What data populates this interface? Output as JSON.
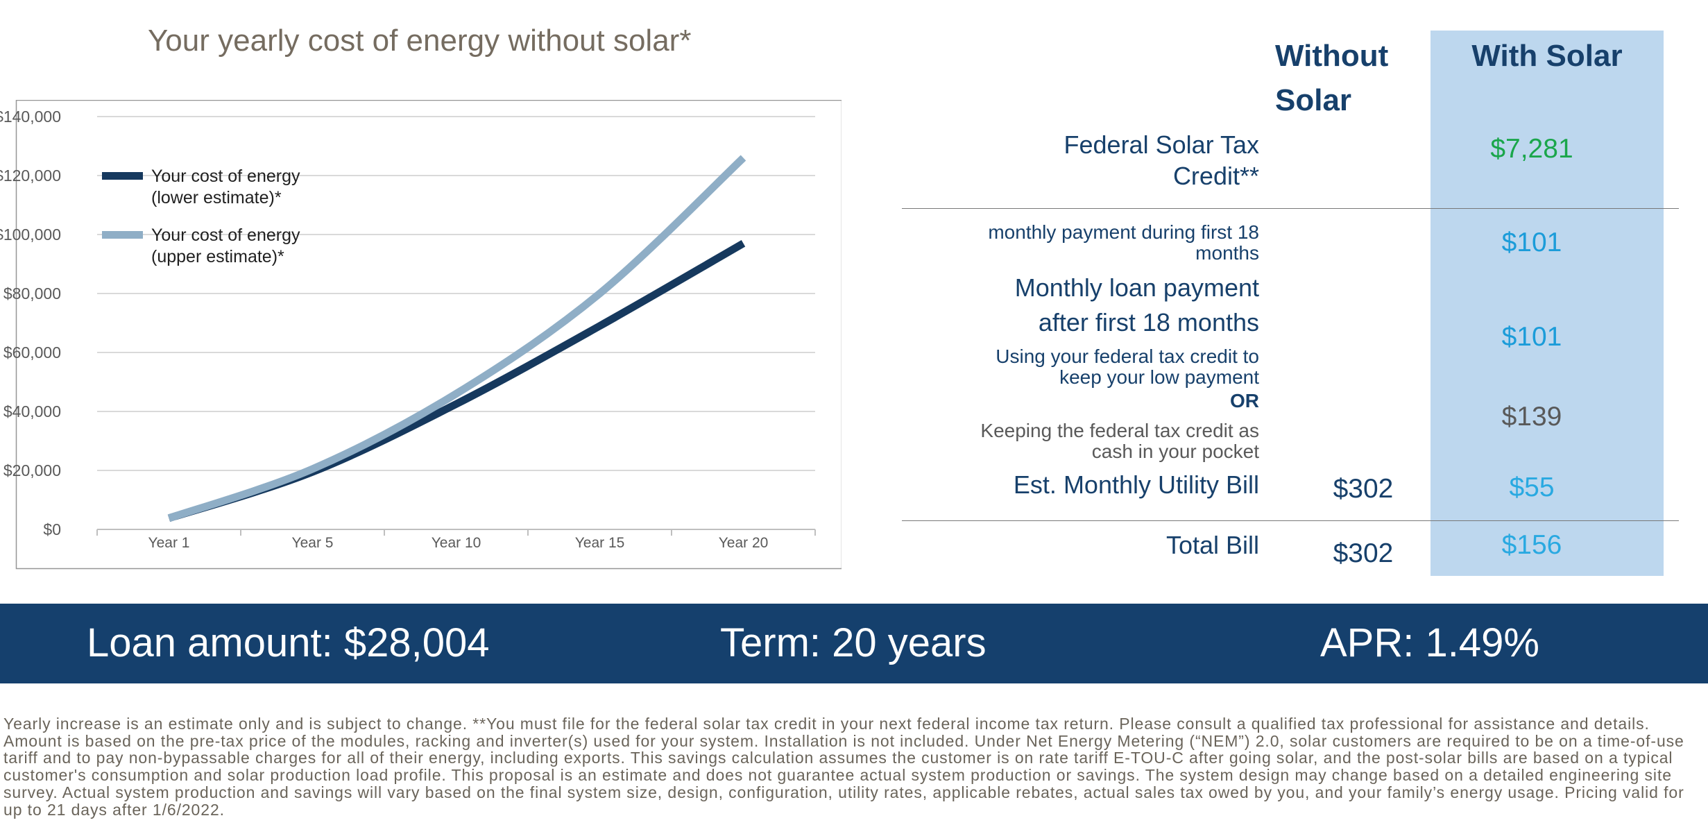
{
  "title": "Your yearly cost of energy without solar*",
  "colors": {
    "navy": "#17406B",
    "banner_bg": "#15406D",
    "with_col_bg": "#BDD7EE",
    "green": "#1AA64B",
    "blue_101": "#1B9CD9",
    "cyan": "#29A9E1",
    "gray_value": "#595959",
    "title_text": "#756C60",
    "fineprint_text": "#6A645A",
    "axis_label": "#595959",
    "gridline": "#D9D9D9",
    "axis_line": "#BFBFBF",
    "chart_border": "#969696",
    "legend_text": "#1F1F1F",
    "line_lower": "#16395E",
    "line_upper": "#8FAEC6"
  },
  "chart_data": {
    "type": "line",
    "title": "Your yearly cost of energy without solar*",
    "x_categories": [
      "Year 1",
      "Year 5",
      "Year 10",
      "Year 15",
      "Year 20"
    ],
    "y_ticks": [
      "$0",
      "$20,000",
      "$40,000",
      "$60,000",
      "$80,000",
      "$100,000",
      "$120,000",
      "$140,000"
    ],
    "ylim": [
      0,
      140000
    ],
    "grid": true,
    "legend_position": "inside-top-left",
    "series": [
      {
        "name": "Your cost of energy (lower estimate)*",
        "values": [
          3800,
          19500,
          42500,
          69000,
          97000
        ]
      },
      {
        "name": "Your cost of energy (upper estimate)*",
        "values": [
          3800,
          20500,
          46000,
          80000,
          126000
        ]
      }
    ]
  },
  "comparison": {
    "header_without": "Without Solar",
    "header_with": "With Solar",
    "rows": [
      {
        "label": "Federal Solar Tax Credit**",
        "with": "$7,281"
      },
      {
        "label": "monthly payment during first 18 months",
        "with": "$101"
      },
      {
        "label": "Monthly loan payment after first 18 months",
        "with": "$101"
      },
      {
        "label": "Using your federal tax credit to keep your low payment"
      },
      {
        "label": "OR"
      },
      {
        "label": "Keeping the federal tax credit as cash in your pocket",
        "with": "$139"
      },
      {
        "label": "Est. Monthly Utility Bill",
        "without": "$302",
        "with": "$55"
      },
      {
        "label": "Total Bill",
        "without": "$302",
        "with": "$156"
      }
    ]
  },
  "banner": {
    "loan": "Loan amount: $28,004",
    "term": "Term: 20 years",
    "apr": "APR: 1.49%"
  },
  "disclaimer": "Yearly increase is an estimate only and is subject to change. **You must file for the federal solar tax credit in your next federal income tax return. Please consult a qualified tax professional for assistance and details. Amount is based on the pre-tax price of the modules, racking and inverter(s) used for your system. Installation is not included. Under Net Energy Metering (“NEM”) 2.0, solar customers are required to be on a time-of-use tariff and to pay non-bypassable charges for all of their energy, including exports. This savings calculation assumes the customer is on rate tariff E-TOU-C after going solar, and the post-solar bills are based on a typical customer's consumption and solar production load profile.  This proposal is an estimate and does not guarantee actual system production or savings. The system design may change based on a detailed engineering site survey. Actual system production and savings will vary based on the final system size, design, configuration, utility rates, applicable rebates, actual sales tax owed by you, and your family’s energy usage. Pricing valid for up to 21 days after 1/6/2022."
}
